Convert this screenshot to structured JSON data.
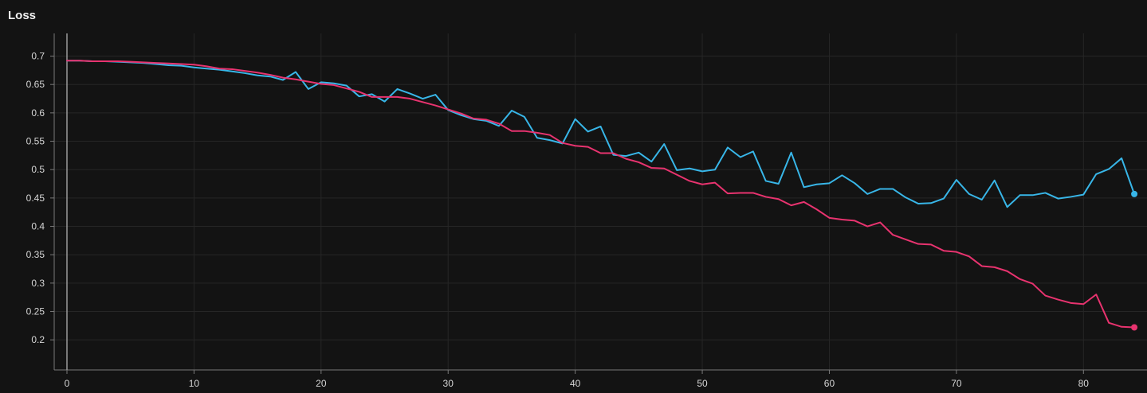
{
  "chart_data": {
    "type": "line",
    "title": "Loss",
    "xlabel": "",
    "ylabel": "",
    "xlim": [
      0,
      85
    ],
    "ylim": [
      0.147,
      0.74
    ],
    "xticks": [
      0,
      10,
      20,
      30,
      40,
      50,
      60,
      70,
      80
    ],
    "yticks": [
      0.2,
      0.25,
      0.3,
      0.35,
      0.4,
      0.45,
      0.5,
      0.55,
      0.6,
      0.65,
      0.7
    ],
    "grid": true,
    "legend": "none",
    "series": [
      {
        "color": "#38b6e8",
        "x": [
          0,
          1,
          2,
          3,
          4,
          5,
          6,
          7,
          8,
          9,
          10,
          11,
          12,
          13,
          14,
          15,
          16,
          17,
          18,
          19,
          20,
          21,
          22,
          23,
          24,
          25,
          26,
          27,
          28,
          29,
          30,
          31,
          32,
          33,
          34,
          35,
          36,
          37,
          38,
          39,
          40,
          41,
          42,
          43,
          44,
          45,
          46,
          47,
          48,
          49,
          50,
          51,
          52,
          53,
          54,
          55,
          56,
          57,
          58,
          59,
          60,
          61,
          62,
          63,
          64,
          65,
          66,
          67,
          68,
          69,
          70,
          71,
          72,
          73,
          74,
          75,
          76,
          77,
          78,
          79,
          80,
          81,
          82,
          83,
          84
        ],
        "values": [
          0.692,
          0.692,
          0.691,
          0.691,
          0.69,
          0.689,
          0.688,
          0.686,
          0.684,
          0.683,
          0.68,
          0.678,
          0.676,
          0.673,
          0.67,
          0.666,
          0.664,
          0.658,
          0.672,
          0.642,
          0.654,
          0.652,
          0.648,
          0.629,
          0.633,
          0.62,
          0.642,
          0.634,
          0.625,
          0.632,
          0.605,
          0.596,
          0.589,
          0.586,
          0.577,
          0.604,
          0.593,
          0.556,
          0.552,
          0.546,
          0.589,
          0.567,
          0.576,
          0.526,
          0.524,
          0.53,
          0.514,
          0.545,
          0.499,
          0.502,
          0.497,
          0.5,
          0.539,
          0.522,
          0.532,
          0.48,
          0.475,
          0.53,
          0.469,
          0.474,
          0.476,
          0.49,
          0.476,
          0.457,
          0.466,
          0.466,
          0.451,
          0.44,
          0.441,
          0.449,
          0.482,
          0.457,
          0.447,
          0.481,
          0.434,
          0.455,
          0.455,
          0.459,
          0.449,
          0.452,
          0.456,
          0.492,
          0.501,
          0.52,
          0.457
        ]
      },
      {
        "color": "#e8336f",
        "x": [
          0,
          1,
          2,
          3,
          4,
          5,
          6,
          7,
          8,
          9,
          10,
          11,
          12,
          13,
          14,
          15,
          16,
          17,
          18,
          19,
          20,
          21,
          22,
          23,
          24,
          25,
          26,
          27,
          28,
          29,
          30,
          31,
          32,
          33,
          34,
          35,
          36,
          37,
          38,
          39,
          40,
          41,
          42,
          43,
          44,
          45,
          46,
          47,
          48,
          49,
          50,
          51,
          52,
          53,
          54,
          55,
          56,
          57,
          58,
          59,
          60,
          61,
          62,
          63,
          64,
          65,
          66,
          67,
          68,
          69,
          70,
          71,
          72,
          73,
          74,
          75,
          76,
          77,
          78,
          79,
          80,
          81,
          82,
          83,
          84
        ],
        "values": [
          0.692,
          0.692,
          0.691,
          0.691,
          0.691,
          0.69,
          0.689,
          0.688,
          0.687,
          0.686,
          0.685,
          0.682,
          0.678,
          0.677,
          0.674,
          0.671,
          0.667,
          0.662,
          0.659,
          0.655,
          0.651,
          0.649,
          0.643,
          0.637,
          0.628,
          0.628,
          0.628,
          0.625,
          0.619,
          0.613,
          0.606,
          0.599,
          0.59,
          0.588,
          0.581,
          0.568,
          0.568,
          0.565,
          0.561,
          0.547,
          0.542,
          0.54,
          0.529,
          0.529,
          0.519,
          0.513,
          0.503,
          0.502,
          0.491,
          0.48,
          0.474,
          0.477,
          0.458,
          0.459,
          0.459,
          0.452,
          0.448,
          0.437,
          0.443,
          0.43,
          0.415,
          0.412,
          0.41,
          0.4,
          0.407,
          0.385,
          0.377,
          0.369,
          0.368,
          0.357,
          0.355,
          0.347,
          0.33,
          0.328,
          0.321,
          0.307,
          0.299,
          0.278,
          0.271,
          0.265,
          0.263,
          0.28,
          0.23,
          0.223,
          0.222
        ]
      }
    ]
  }
}
